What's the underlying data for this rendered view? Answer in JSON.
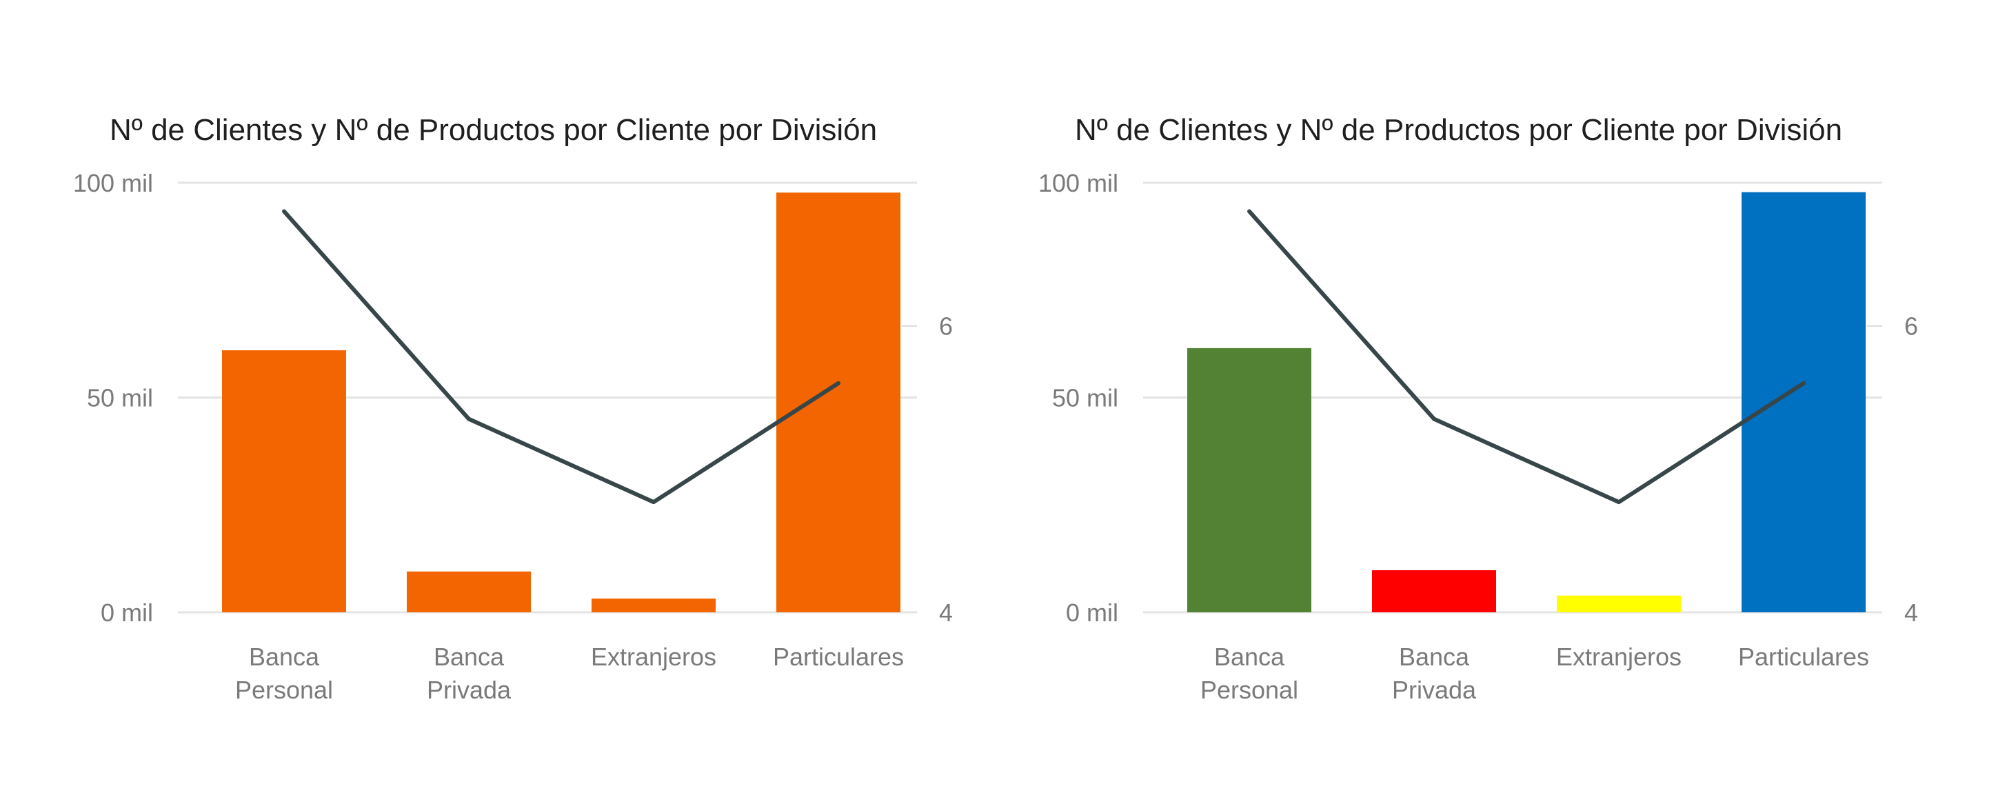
{
  "chart_data": [
    {
      "type": "bar",
      "title": "Nº de Clientes y Nº de Productos por Cliente por División",
      "xlabel": "",
      "ylabel": "",
      "categories": [
        [
          "Banca",
          "Personal"
        ],
        [
          "Banca",
          "Privada"
        ],
        [
          "Extranjeros"
        ],
        [
          "Particulares"
        ]
      ],
      "left_axis": {
        "ticks": [
          "0 mil",
          "50 mil",
          "100 mil"
        ],
        "tick_values": [
          0,
          50000,
          100000
        ],
        "range": [
          0,
          100000
        ]
      },
      "right_axis": {
        "ticks": [
          "4",
          "6"
        ],
        "tick_values": [
          4,
          6
        ],
        "range": [
          4,
          7
        ]
      },
      "series": [
        {
          "kind": "bar",
          "axis": "left",
          "values": [
            61000,
            9500,
            3200,
            97700
          ],
          "colors": [
            "#F26500",
            "#F26500",
            "#F26500",
            "#F26500"
          ]
        },
        {
          "kind": "line",
          "axis": "right",
          "values": [
            6.8,
            5.35,
            4.77,
            5.6
          ],
          "color": "#374649"
        }
      ],
      "grid": true,
      "legend": "none"
    },
    {
      "type": "bar",
      "title": "Nº de Clientes y Nº de Productos por Cliente por División",
      "xlabel": "",
      "ylabel": "",
      "categories": [
        [
          "Banca",
          "Personal"
        ],
        [
          "Banca",
          "Privada"
        ],
        [
          "Extranjeros"
        ],
        [
          "Particulares"
        ]
      ],
      "left_axis": {
        "ticks": [
          "0 mil",
          "50 mil",
          "100 mil"
        ],
        "tick_values": [
          0,
          50000,
          100000
        ],
        "range": [
          0,
          100000
        ]
      },
      "right_axis": {
        "ticks": [
          "4",
          "6"
        ],
        "tick_values": [
          4,
          6
        ],
        "range": [
          4,
          7
        ]
      },
      "series": [
        {
          "kind": "bar",
          "axis": "left",
          "values": [
            61500,
            9800,
            3900,
            97800
          ],
          "colors": [
            "#548235",
            "#FF0000",
            "#FFFF00",
            "#0070C0"
          ]
        },
        {
          "kind": "line",
          "axis": "right",
          "values": [
            6.8,
            5.35,
            4.77,
            5.6
          ],
          "color": "#374649"
        }
      ],
      "grid": true,
      "legend": "none"
    }
  ]
}
